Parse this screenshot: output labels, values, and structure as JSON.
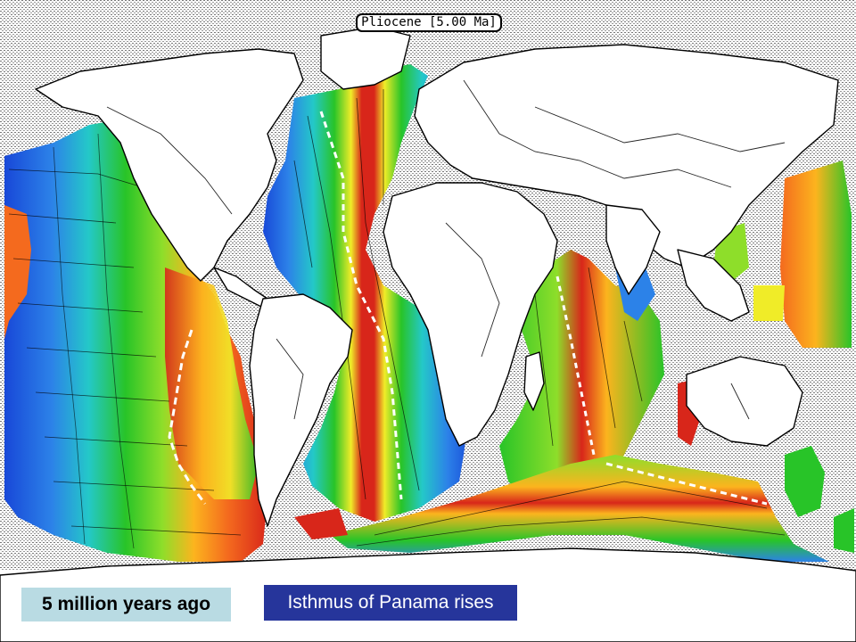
{
  "map": {
    "epoch_label": "Pliocene [5.00 Ma]",
    "caption_age": "5 million years ago",
    "caption_event": "Isthmus of Panama rises",
    "colors": {
      "background": "#ffffff",
      "stipple": "#8a8a8a",
      "coast": "#000000",
      "age_ramp": [
        "#d8261a",
        "#f46a1e",
        "#fcb41e",
        "#f0ec28",
        "#8ede2a",
        "#28c428",
        "#24c8c8",
        "#2c82e8",
        "#1848d8"
      ],
      "age_caption_bg": "#b9dbe3",
      "event_caption_bg": "#26359b"
    },
    "icons": [
      "continent-outline",
      "ocean-floor-age-band",
      "mid-ocean-ridge"
    ]
  }
}
